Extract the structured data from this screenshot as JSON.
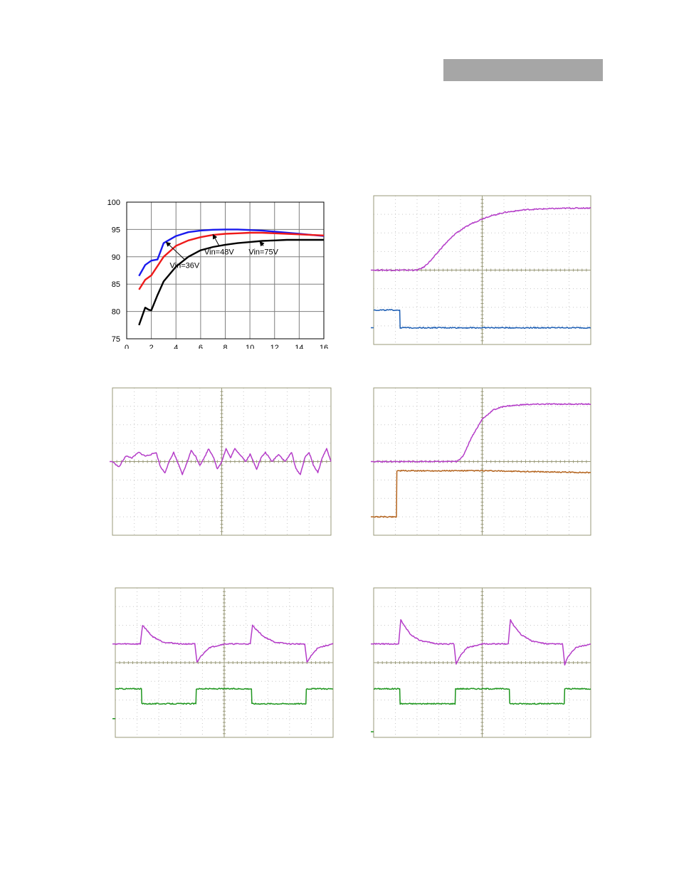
{
  "page": {
    "header_bar_color": "#a6a6a6"
  },
  "colors": {
    "grid": "#7f7f7f",
    "scope_grid": "#c8c8c8",
    "scope_axis": "#9a9a7a",
    "black": "#000000",
    "blue": "#1a1aee",
    "red": "#ee1a1a",
    "magenta": "#b43cc8",
    "scope_blue": "#1e5fb4",
    "orange": "#b4641e",
    "green": "#1e961e"
  },
  "chart_data": [
    {
      "type": "line",
      "title": "",
      "xlabel": "",
      "ylabel": "",
      "xlim": [
        0,
        16
      ],
      "ylim": [
        75,
        100
      ],
      "x_ticks": [
        "0",
        "2",
        "4",
        "6",
        "8",
        "10",
        "12",
        "14",
        "16"
      ],
      "y_ticks": [
        "75",
        "80",
        "85",
        "90",
        "95",
        "100"
      ],
      "grid": true,
      "series": [
        {
          "name": "Vin=36V",
          "color": "blue",
          "points": [
            [
              1,
              86.5
            ],
            [
              1.5,
              88.5
            ],
            [
              2,
              89.3
            ],
            [
              2.5,
              89.5
            ],
            [
              3,
              92.5
            ],
            [
              4,
              93.8
            ],
            [
              5,
              94.5
            ],
            [
              6,
              94.8
            ],
            [
              7,
              94.95
            ],
            [
              8,
              95
            ],
            [
              9,
              95
            ],
            [
              10,
              94.9
            ],
            [
              11,
              94.8
            ],
            [
              12,
              94.6
            ],
            [
              13,
              94.4
            ],
            [
              14,
              94.2
            ],
            [
              15,
              94
            ],
            [
              16,
              93.8
            ]
          ]
        },
        {
          "name": "Vin=48V",
          "color": "red",
          "points": [
            [
              1,
              84
            ],
            [
              1.5,
              85.8
            ],
            [
              2,
              86.6
            ],
            [
              3,
              90
            ],
            [
              4,
              92
            ],
            [
              5,
              93
            ],
            [
              6,
              93.6
            ],
            [
              7,
              94
            ],
            [
              8,
              94.2
            ],
            [
              9,
              94.3
            ],
            [
              10,
              94.4
            ],
            [
              11,
              94.4
            ],
            [
              12,
              94.3
            ],
            [
              13,
              94.2
            ],
            [
              14,
              94.1
            ],
            [
              15,
              94
            ],
            [
              16,
              93.9
            ]
          ]
        },
        {
          "name": "Vin=75V",
          "color": "black",
          "points": [
            [
              1,
              77.5
            ],
            [
              1.5,
              80.7
            ],
            [
              1.8,
              80.3
            ],
            [
              2,
              80.2
            ],
            [
              2.5,
              83
            ],
            [
              3,
              85.5
            ],
            [
              4,
              88.2
            ],
            [
              5,
              90
            ],
            [
              6,
              91.2
            ],
            [
              7,
              91.8
            ],
            [
              8,
              92.2
            ],
            [
              9,
              92.5
            ],
            [
              10,
              92.7
            ],
            [
              11,
              92.9
            ],
            [
              12,
              93
            ],
            [
              13,
              93.1
            ],
            [
              14,
              93.1
            ],
            [
              15,
              93.1
            ],
            [
              16,
              93.1
            ]
          ]
        }
      ],
      "annotations": [
        {
          "text": "Vin=36V",
          "at": [
            4.7,
            88.2
          ],
          "arrow_to": [
            3.2,
            92.7
          ]
        },
        {
          "text": "Vin=48V",
          "at": [
            7.5,
            90.7
          ],
          "arrow_to": [
            7.0,
            94.1
          ]
        },
        {
          "text": "Vin=75V",
          "at": [
            11.1,
            90.7
          ],
          "arrow_to": [
            10.8,
            92.8
          ]
        }
      ]
    },
    {
      "type": "line",
      "title": "",
      "xlabel": "",
      "ylabel": "",
      "xlim": [
        0,
        10
      ],
      "ylim": [
        0,
        8
      ],
      "grid": true,
      "series": [
        {
          "color": "magenta",
          "points": [
            [
              0,
              4.0
            ],
            [
              2.0,
              4.0
            ],
            [
              2.3,
              4.15
            ],
            [
              2.7,
              4.6
            ],
            [
              3.2,
              5.3
            ],
            [
              3.8,
              6.0
            ],
            [
              4.5,
              6.5
            ],
            [
              5.2,
              6.85
            ],
            [
              6.0,
              7.1
            ],
            [
              7.0,
              7.25
            ],
            [
              8.0,
              7.3
            ],
            [
              9.0,
              7.33
            ],
            [
              10,
              7.34
            ]
          ]
        },
        {
          "color": "scope_blue",
          "points": [
            [
              0,
              1.85
            ],
            [
              1.2,
              1.85
            ],
            [
              1.22,
              0.9
            ],
            [
              10,
              0.9
            ]
          ]
        }
      ],
      "markers": [
        {
          "y": 4.0,
          "color": "magenta"
        },
        {
          "y": 0.9,
          "color": "scope_blue"
        }
      ]
    },
    {
      "type": "line",
      "title": "",
      "xlabel": "",
      "ylabel": "",
      "xlim": [
        0,
        10
      ],
      "ylim": [
        0,
        8
      ],
      "grid": true,
      "series": [
        {
          "color": "magenta",
          "points": [
            [
              0,
              4.0
            ],
            [
              0.3,
              3.7
            ],
            [
              0.6,
              4.3
            ],
            [
              0.9,
              4.2
            ],
            [
              1.2,
              4.5
            ],
            [
              1.5,
              4.3
            ],
            [
              1.8,
              4.4
            ],
            [
              2.0,
              4.5
            ],
            [
              2.2,
              3.7
            ],
            [
              2.4,
              3.4
            ],
            [
              2.6,
              4.0
            ],
            [
              2.8,
              4.5
            ],
            [
              3.0,
              3.9
            ],
            [
              3.2,
              3.3
            ],
            [
              3.4,
              3.9
            ],
            [
              3.6,
              4.6
            ],
            [
              3.8,
              4.3
            ],
            [
              4.0,
              3.8
            ],
            [
              4.2,
              4.2
            ],
            [
              4.4,
              4.7
            ],
            [
              4.6,
              4.3
            ],
            [
              4.8,
              3.6
            ],
            [
              5.0,
              4.0
            ],
            [
              5.2,
              4.7
            ],
            [
              5.4,
              4.2
            ],
            [
              5.6,
              4.7
            ],
            [
              5.9,
              4.3
            ],
            [
              6.1,
              4.0
            ],
            [
              6.3,
              4.4
            ],
            [
              6.6,
              3.6
            ],
            [
              6.8,
              4.2
            ],
            [
              7.0,
              4.5
            ],
            [
              7.3,
              4.0
            ],
            [
              7.6,
              4.4
            ],
            [
              7.9,
              4.0
            ],
            [
              8.2,
              4.5
            ],
            [
              8.4,
              3.6
            ],
            [
              8.6,
              3.3
            ],
            [
              8.8,
              4.2
            ],
            [
              9.0,
              4.5
            ],
            [
              9.2,
              3.8
            ],
            [
              9.4,
              3.4
            ],
            [
              9.6,
              4.2
            ],
            [
              9.8,
              4.7
            ],
            [
              10,
              4.0
            ]
          ]
        }
      ],
      "markers": [
        {
          "y": 4.0,
          "color": "magenta"
        }
      ]
    },
    {
      "type": "line",
      "title": "",
      "xlabel": "",
      "ylabel": "",
      "xlim": [
        0,
        10
      ],
      "ylim": [
        0,
        8
      ],
      "grid": true,
      "series": [
        {
          "color": "magenta",
          "points": [
            [
              0,
              4.0
            ],
            [
              3.8,
              4.0
            ],
            [
              4.1,
              4.25
            ],
            [
              4.5,
              5.3
            ],
            [
              5.0,
              6.3
            ],
            [
              5.5,
              6.8
            ],
            [
              6.0,
              7.0
            ],
            [
              7.0,
              7.1
            ],
            [
              8.0,
              7.12
            ],
            [
              10,
              7.12
            ]
          ]
        },
        {
          "color": "orange",
          "points": [
            [
              0,
              1.0
            ],
            [
              1.05,
              1.0
            ],
            [
              1.07,
              3.5
            ],
            [
              5.0,
              3.5
            ],
            [
              10,
              3.4
            ]
          ]
        }
      ],
      "markers": [
        {
          "y": 4.0,
          "color": "magenta"
        },
        {
          "y": 1.0,
          "color": "orange"
        }
      ]
    },
    {
      "type": "line",
      "title": "",
      "xlabel": "",
      "ylabel": "",
      "xlim": [
        0,
        10
      ],
      "ylim": [
        0,
        8
      ],
      "grid": true,
      "series": [
        {
          "color": "magenta",
          "points": [
            [
              0,
              5.0
            ],
            [
              1.15,
              5.0
            ],
            [
              1.25,
              6.0
            ],
            [
              1.4,
              5.8
            ],
            [
              1.7,
              5.4
            ],
            [
              2.2,
              5.1
            ],
            [
              3.0,
              5.0
            ],
            [
              3.65,
              5.0
            ],
            [
              3.75,
              4.0
            ],
            [
              3.9,
              4.3
            ],
            [
              4.3,
              4.8
            ],
            [
              5.0,
              5.0
            ],
            [
              6.2,
              5.0
            ],
            [
              6.3,
              6.0
            ],
            [
              6.45,
              5.8
            ],
            [
              6.8,
              5.4
            ],
            [
              7.3,
              5.1
            ],
            [
              8.0,
              5.0
            ],
            [
              8.7,
              5.0
            ],
            [
              8.8,
              4.0
            ],
            [
              8.95,
              4.3
            ],
            [
              9.3,
              4.8
            ],
            [
              10,
              5.0
            ]
          ]
        },
        {
          "color": "green",
          "points": [
            [
              0,
              2.6
            ],
            [
              1.2,
              2.6
            ],
            [
              1.22,
              1.8
            ],
            [
              3.7,
              1.8
            ],
            [
              3.72,
              2.6
            ],
            [
              6.25,
              2.6
            ],
            [
              6.27,
              1.8
            ],
            [
              8.75,
              1.8
            ],
            [
              8.77,
              2.6
            ],
            [
              10,
              2.6
            ]
          ]
        }
      ],
      "markers": [
        {
          "y": 5.0,
          "color": "magenta"
        },
        {
          "y": 1.0,
          "color": "green"
        }
      ]
    },
    {
      "type": "line",
      "title": "",
      "xlabel": "",
      "ylabel": "",
      "xlim": [
        0,
        10
      ],
      "ylim": [
        0,
        8
      ],
      "grid": true,
      "series": [
        {
          "color": "magenta",
          "points": [
            [
              0,
              5.0
            ],
            [
              1.15,
              5.0
            ],
            [
              1.25,
              6.3
            ],
            [
              1.4,
              6.0
            ],
            [
              1.7,
              5.5
            ],
            [
              2.2,
              5.15
            ],
            [
              3.0,
              5.0
            ],
            [
              3.7,
              5.0
            ],
            [
              3.8,
              3.9
            ],
            [
              3.95,
              4.3
            ],
            [
              4.3,
              4.8
            ],
            [
              5.0,
              5.0
            ],
            [
              6.2,
              5.0
            ],
            [
              6.3,
              6.3
            ],
            [
              6.45,
              6.0
            ],
            [
              6.8,
              5.5
            ],
            [
              7.3,
              5.15
            ],
            [
              8.0,
              5.0
            ],
            [
              8.7,
              5.0
            ],
            [
              8.8,
              3.9
            ],
            [
              8.95,
              4.3
            ],
            [
              9.3,
              4.8
            ],
            [
              10,
              5.0
            ]
          ]
        },
        {
          "color": "green",
          "points": [
            [
              0,
              2.6
            ],
            [
              1.2,
              2.6
            ],
            [
              1.22,
              1.8
            ],
            [
              3.75,
              1.8
            ],
            [
              3.77,
              2.6
            ],
            [
              6.25,
              2.6
            ],
            [
              6.27,
              1.8
            ],
            [
              8.78,
              1.8
            ],
            [
              8.8,
              2.6
            ],
            [
              10,
              2.6
            ]
          ]
        }
      ],
      "markers": [
        {
          "y": 5.0,
          "color": "magenta"
        },
        {
          "y": 0.3,
          "color": "green"
        }
      ]
    }
  ]
}
